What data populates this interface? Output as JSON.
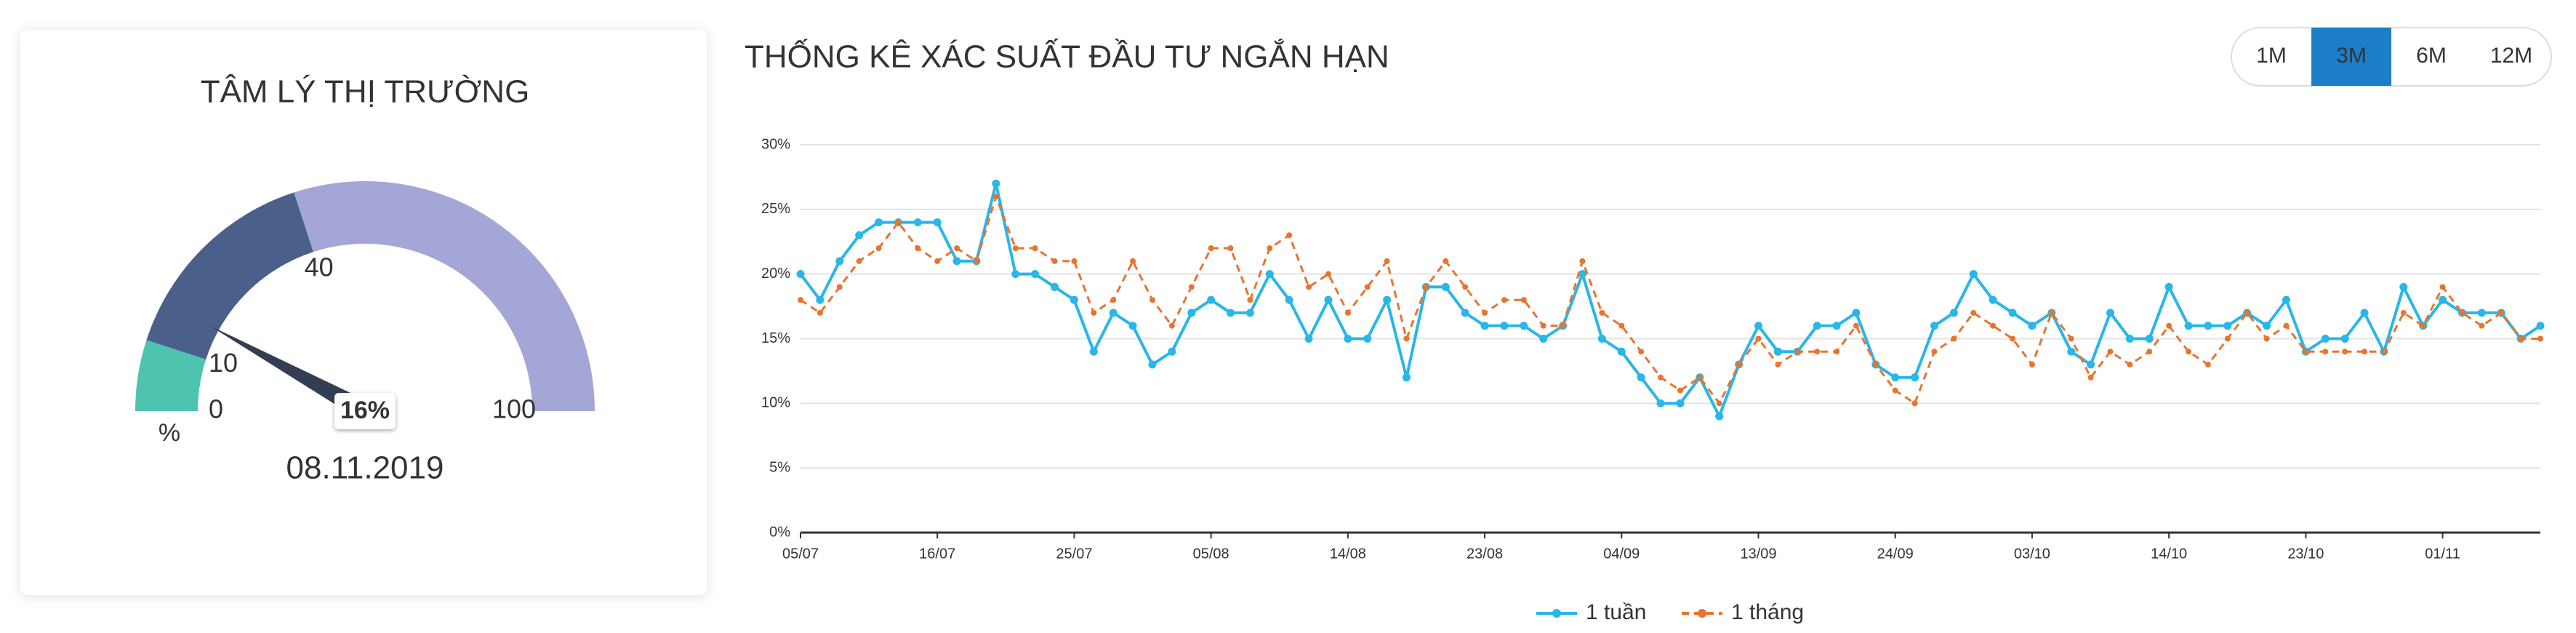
{
  "chart_data": [
    {
      "type": "gauge",
      "title": "TÂM LÝ THỊ TRƯỜNG",
      "value": 16,
      "value_label": "16%",
      "unit": "%",
      "date": "08.11.2019",
      "lim": [
        0,
        100
      ],
      "ticks": [
        0,
        10,
        40,
        100
      ],
      "needle_color": "#343e52",
      "bands": [
        {
          "from": 0,
          "to": 10,
          "color": "#4dc3b0"
        },
        {
          "from": 10,
          "to": 40,
          "color": "#4b5f8b"
        },
        {
          "from": 40,
          "to": 100,
          "color": "#a3a6d6"
        }
      ]
    },
    {
      "type": "line",
      "title": "THỐNG KÊ XÁC SUẤT ĐẦU TƯ NGẮN HẠN",
      "range_options": [
        "1M",
        "3M",
        "6M",
        "12M"
      ],
      "range_selected": "3M",
      "categories": [
        "05/07",
        null,
        null,
        null,
        null,
        null,
        null,
        "16/07",
        null,
        null,
        null,
        null,
        null,
        null,
        "25/07",
        null,
        null,
        null,
        null,
        null,
        null,
        "05/08",
        null,
        null,
        null,
        null,
        null,
        null,
        "14/08",
        null,
        null,
        null,
        null,
        null,
        null,
        "23/08",
        null,
        null,
        null,
        null,
        null,
        null,
        "04/09",
        null,
        null,
        null,
        null,
        null,
        null,
        "13/09",
        null,
        null,
        null,
        null,
        null,
        null,
        "24/09",
        null,
        null,
        null,
        null,
        null,
        null,
        "03/10",
        null,
        null,
        null,
        null,
        null,
        null,
        "14/10",
        null,
        null,
        null,
        null,
        null,
        null,
        "23/10",
        null,
        null,
        null,
        null,
        null,
        null,
        "01/11",
        null,
        null,
        null,
        null,
        null
      ],
      "series": [
        {
          "name": "1 tuần",
          "color": "#29b6e8",
          "line_style": "solid",
          "values": [
            20,
            18,
            21,
            23,
            24,
            24,
            24,
            24,
            21,
            21,
            27,
            20,
            20,
            19,
            18,
            14,
            17,
            16,
            13,
            14,
            17,
            18,
            17,
            17,
            20,
            18,
            15,
            18,
            15,
            15,
            18,
            12,
            19,
            19,
            17,
            16,
            16,
            16,
            15,
            16,
            20,
            15,
            14,
            12,
            10,
            10,
            12,
            9,
            13,
            16,
            14,
            14,
            16,
            16,
            17,
            13,
            12,
            12,
            16,
            17,
            20,
            18,
            17,
            16,
            17,
            14,
            13,
            17,
            15,
            15,
            19,
            16,
            16,
            16,
            17,
            16,
            18,
            14,
            15,
            15,
            17,
            14,
            19,
            16,
            18,
            17,
            17,
            17,
            15,
            16
          ]
        },
        {
          "name": "1 tháng",
          "color": "#e8742e",
          "line_style": "dashed",
          "values": [
            18,
            17,
            19,
            21,
            22,
            24,
            22,
            21,
            22,
            21,
            26,
            22,
            22,
            21,
            21,
            17,
            18,
            21,
            18,
            16,
            19,
            22,
            22,
            18,
            22,
            23,
            19,
            20,
            17,
            19,
            21,
            15,
            19,
            21,
            19,
            17,
            18,
            18,
            16,
            16,
            21,
            17,
            16,
            14,
            12,
            11,
            12,
            10,
            13,
            15,
            13,
            14,
            14,
            14,
            16,
            13,
            11,
            10,
            14,
            15,
            17,
            16,
            15,
            13,
            17,
            15,
            12,
            14,
            13,
            14,
            16,
            14,
            13,
            15,
            17,
            15,
            16,
            14,
            14,
            14,
            14,
            14,
            17,
            16,
            19,
            17,
            16,
            17,
            15,
            15
          ]
        }
      ],
      "ylim": [
        0,
        30
      ],
      "yticks": [
        {
          "value": 0,
          "label": "0%"
        },
        {
          "value": 5,
          "label": "5%"
        },
        {
          "value": 10,
          "label": "10%"
        },
        {
          "value": 15,
          "label": "15%"
        },
        {
          "value": 20,
          "label": "20%"
        },
        {
          "value": 25,
          "label": "25%"
        },
        {
          "value": 30,
          "label": "30%"
        }
      ],
      "grid": true
    }
  ]
}
